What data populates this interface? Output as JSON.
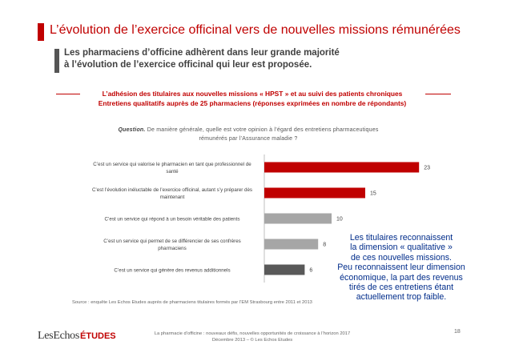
{
  "header": {
    "title": "L’évolution de l’exercice officinal vers de nouvelles missions rémunérées",
    "subtitle_line1": "Les pharmaciens d’officine adhèrent dans leur grande majorité",
    "subtitle_line2": "à l’évolution de l’exercice officinal qui leur est proposée."
  },
  "study": {
    "line1": "L’adhésion des titulaires aux nouvelles missions « HPST » et au suivi des patients chroniques",
    "line2": "Entretiens qualitatifs auprès de 25 pharmaciens (réponses exprimées en nombre de répondants)"
  },
  "question": {
    "label": "Question.",
    "text_line1": " De manière générale, quelle est votre opinion à l’égard des entretiens pharmaceutiques",
    "text_line2": "rémunérés par l’Assurance maladie ?"
  },
  "chart_data": {
    "type": "bar",
    "orientation": "horizontal",
    "categories": [
      [
        "C’est un service qui valorise le pharmacien en tant que professionnel de",
        "santé"
      ],
      [
        "C’est l’évolution inéluctable de l’exercice officinal, autant s’y préparer dès",
        "maintenant"
      ],
      [
        "C’est un service qui répond à un besoin véritable des patients"
      ],
      [
        "C’est un service qui permet de se différencier de ses confrères",
        "pharmaciens"
      ],
      [
        "C’est un service qui génère des revenus additionnels"
      ]
    ],
    "values": [
      23,
      15,
      10,
      8,
      6
    ],
    "colors": [
      "#c00000",
      "#c00000",
      "#a6a6a6",
      "#a6a6a6",
      "#595959"
    ],
    "xlim": [
      0,
      25
    ],
    "grid": false,
    "legend": "none"
  },
  "callout": {
    "lines": [
      "Les titulaires reconnaissent",
      "la dimension « qualitative »",
      "de ces nouvelles missions.",
      "Peu reconnaissent leur dimension",
      "économique, la part des revenus",
      "tirés de ces entretiens étant",
      "actuellement trop faible."
    ]
  },
  "source": "Source : enquête Les Echos Etudes auprès de pharmaciens titulaires formés par l’EM Strasbourg entre 2011 et 2013",
  "logo": {
    "part1": "LesEchos",
    "part2": "ÉTUDES"
  },
  "footer": {
    "line1": "La pharmacie d’officine : nouveaux défis, nouvelles opportunités de croissance à l’horizon 2017",
    "line2": "Décembre 2013 – © Les Echos Etudes"
  },
  "page_number": "18"
}
